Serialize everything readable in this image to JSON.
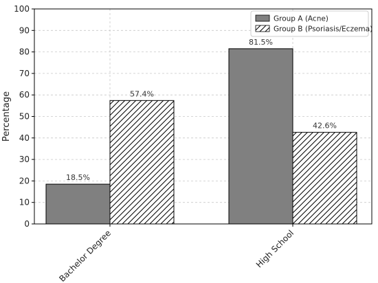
{
  "chart_data": {
    "type": "bar",
    "title": "",
    "xlabel": "",
    "ylabel": "Percentage",
    "categories": [
      "Bachelor Degree",
      "High School"
    ],
    "ylim": [
      0,
      100
    ],
    "yticks": [
      0,
      10,
      20,
      30,
      40,
      50,
      60,
      70,
      80,
      90,
      100
    ],
    "grid": true,
    "legend_position": "top-right",
    "series": [
      {
        "name": "Group A (Acne)",
        "values": [
          18.5,
          81.5
        ],
        "labels": [
          "18.5%",
          "81.5%"
        ],
        "color": "#808080",
        "pattern": "solid"
      },
      {
        "name": "Group B (Psoriasis/Eczema)",
        "values": [
          57.4,
          42.6
        ],
        "labels": [
          "57.4%",
          "42.6%"
        ],
        "color": "#ffffff",
        "pattern": "hatch"
      }
    ]
  }
}
